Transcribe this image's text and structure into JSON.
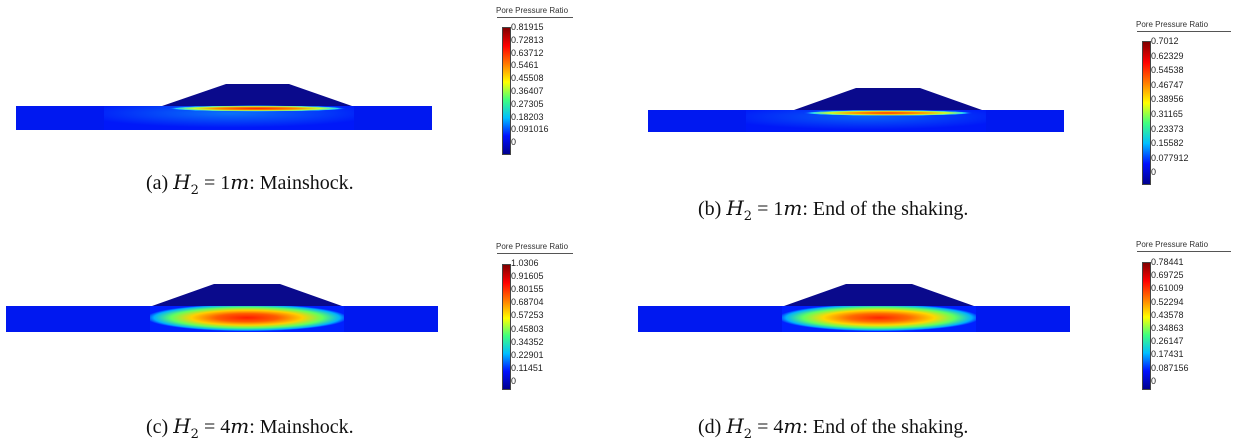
{
  "colorbar_title": "Pore Pressure Ratio",
  "colormap": [
    "#00008f",
    "#0010ff",
    "#00bfff",
    "#3fff7f",
    "#ffff00",
    "#ff7a00",
    "#ff0000",
    "#800000"
  ],
  "panels": [
    {
      "id": "a",
      "caption_prefix": "(a) ",
      "caption_var": "H",
      "caption_sub": "2",
      "caption_eq": " = 1",
      "caption_unit": "m",
      "caption_rest": ": Mainshock.",
      "ticks": [
        "0.81915",
        "0.72813",
        "0.63712",
        "0.5461",
        "0.45508",
        "0.36407",
        "0.27305",
        "0.18203",
        "0.091016",
        "0"
      ]
    },
    {
      "id": "b",
      "caption_prefix": "(b) ",
      "caption_var": "H",
      "caption_sub": "2",
      "caption_eq": " = 1",
      "caption_unit": "m",
      "caption_rest": ": End of the shaking.",
      "ticks": [
        "0.7012",
        "0.62329",
        "0.54538",
        "0.46747",
        "0.38956",
        "0.31165",
        "0.23373",
        "0.15582",
        "0.077912",
        "0"
      ]
    },
    {
      "id": "c",
      "caption_prefix": "(c) ",
      "caption_var": "H",
      "caption_sub": "2",
      "caption_eq": " = 4",
      "caption_unit": "m",
      "caption_rest": ": Mainshock.",
      "ticks": [
        "1.0306",
        "0.91605",
        "0.80155",
        "0.68704",
        "0.57253",
        "0.45803",
        "0.34352",
        "0.22901",
        "0.11451",
        "0"
      ]
    },
    {
      "id": "d",
      "caption_prefix": "(d) ",
      "caption_var": "H",
      "caption_sub": "2",
      "caption_eq": " = 4",
      "caption_unit": "m",
      "caption_rest": ": End of the shaking.",
      "ticks": [
        "0.78441",
        "0.69725",
        "0.61009",
        "0.52294",
        "0.43578",
        "0.34863",
        "0.26147",
        "0.17431",
        "0.087156",
        "0"
      ]
    }
  ]
}
